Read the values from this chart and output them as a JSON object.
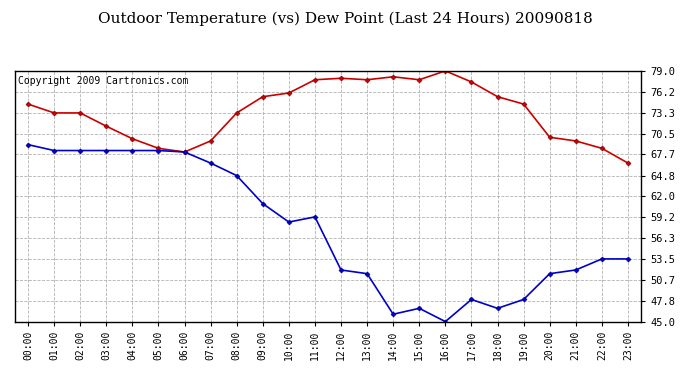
{
  "title": "Outdoor Temperature (vs) Dew Point (Last 24 Hours) 20090818",
  "copyright_text": "Copyright 2009 Cartronics.com",
  "hours": [
    "00:00",
    "01:00",
    "02:00",
    "03:00",
    "04:00",
    "05:00",
    "06:00",
    "07:00",
    "08:00",
    "09:00",
    "10:00",
    "11:00",
    "12:00",
    "13:00",
    "14:00",
    "15:00",
    "16:00",
    "17:00",
    "18:00",
    "19:00",
    "20:00",
    "21:00",
    "22:00",
    "23:00"
  ],
  "temp": [
    74.5,
    73.3,
    73.3,
    71.5,
    69.8,
    68.5,
    68.0,
    69.5,
    73.3,
    75.5,
    76.0,
    77.8,
    78.0,
    77.8,
    78.2,
    77.8,
    79.0,
    77.5,
    75.5,
    74.5,
    70.0,
    69.5,
    68.5,
    66.5
  ],
  "dewpoint": [
    69.0,
    68.2,
    68.2,
    68.2,
    68.2,
    68.2,
    68.0,
    66.5,
    64.8,
    61.0,
    58.5,
    59.2,
    52.0,
    51.5,
    46.0,
    46.8,
    45.0,
    48.0,
    46.8,
    48.0,
    51.5,
    52.0,
    53.5,
    53.5
  ],
  "y_ticks": [
    45.0,
    47.8,
    50.7,
    53.5,
    56.3,
    59.2,
    62.0,
    64.8,
    67.7,
    70.5,
    73.3,
    76.2,
    79.0
  ],
  "ylim": [
    45.0,
    79.0
  ],
  "temp_color": "#cc0000",
  "dewpoint_color": "#0000cc",
  "bg_color": "#ffffff",
  "plot_bg_color": "#ffffff",
  "grid_color": "#aaaaaa",
  "title_fontsize": 11,
  "copyright_fontsize": 7
}
